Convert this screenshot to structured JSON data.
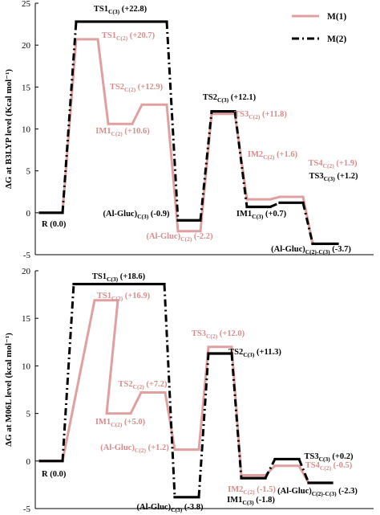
{
  "colors": {
    "m1": "#e0a0a0",
    "m2": "#000000",
    "m1_label": "#d98c8c",
    "m2_label": "#000000"
  },
  "legend": [
    {
      "key": "m1",
      "label": "M(1)"
    },
    {
      "key": "m2",
      "label": "M(2)"
    }
  ],
  "chart_data": [
    {
      "type": "line",
      "ylabel": "ΔG  at  B3LYP level  (Kcal mol⁻¹)",
      "ylim": [
        -5,
        25
      ],
      "yticks": [
        -5,
        0,
        5,
        10,
        15,
        20,
        25
      ],
      "legend_position": "top-right",
      "series": [
        {
          "name": "M(1)",
          "key": "m1",
          "points": [
            {
              "state": "R",
              "value": 0.0
            },
            {
              "state": "TS1 C(2)",
              "value": 20.7
            },
            {
              "state": "IM1 C(2)",
              "value": 10.6
            },
            {
              "state": "TS2 C(2)",
              "value": 12.9
            },
            {
              "state": "(Al-Gluc) C(2)",
              "value": -2.2
            },
            {
              "state": "TS3 C(2)",
              "value": 11.8
            },
            {
              "state": "IM2 C(2)",
              "value": 1.6
            },
            {
              "state": "TS4 C(2)",
              "value": 1.9
            },
            {
              "state": "(Al-Gluc) C(2)-C(3)",
              "value": -3.7
            }
          ]
        },
        {
          "name": "M(2)",
          "key": "m2",
          "points": [
            {
              "state": "R",
              "value": 0.0
            },
            {
              "state": "TS1 C(3)",
              "value": 22.8
            },
            {
              "state": "(Al-Gluc) C(3)",
              "value": -0.9
            },
            {
              "state": "TS2 C(3)",
              "value": 12.1
            },
            {
              "state": "IM1 C(3)",
              "value": 0.7
            },
            {
              "state": "TS3 C(3)",
              "value": 1.2
            },
            {
              "state": "(Al-Gluc) C(2)-C(3)",
              "value": -3.7
            }
          ]
        }
      ],
      "labels": [
        {
          "id": "r",
          "main": "R",
          "sub": "",
          "value": "(0.0)",
          "series": "m2"
        },
        {
          "id": "ts1c3",
          "main": "TS1",
          "sub": "C(3)",
          "value": "(+22.8)",
          "series": "m2"
        },
        {
          "id": "ts1c2",
          "main": "TS1",
          "sub": "C(2)",
          "value": "(+20.7)",
          "series": "m1"
        },
        {
          "id": "ts2c2",
          "main": "TS2",
          "sub": "C(2)",
          "value": "(+12.9)",
          "series": "m1"
        },
        {
          "id": "im1c2",
          "main": "IM1",
          "sub": "C(2)",
          "value": "(+10.6)",
          "series": "m1"
        },
        {
          "id": "ts2c3",
          "main": "TS2",
          "sub": "C(3)",
          "value": "(+12.1)",
          "series": "m2"
        },
        {
          "id": "ts3c2",
          "main": "TS3",
          "sub": "C(2)",
          "value": "(+11.8)",
          "series": "m1"
        },
        {
          "id": "alglucc3",
          "main": "(Al-Gluc)",
          "sub": "C(3)",
          "value": "(-0.9)",
          "series": "m2"
        },
        {
          "id": "alglucc2",
          "main": "(Al-Gluc)",
          "sub": "C(2)",
          "value": "(-2.2)",
          "series": "m1"
        },
        {
          "id": "im2c2",
          "main": "IM2",
          "sub": "C(2)",
          "value": "(+1.6)",
          "series": "m1"
        },
        {
          "id": "ts4c2",
          "main": "TS4",
          "sub": "C(2)",
          "value": "(+1.9)",
          "series": "m1"
        },
        {
          "id": "ts3c3",
          "main": "TS3",
          "sub": "C(3)",
          "value": "(+1.2)",
          "series": "m2"
        },
        {
          "id": "im1c3",
          "main": "IM1",
          "sub": "C(3)",
          "value": "(+0.7)",
          "series": "m2"
        },
        {
          "id": "alglucc23",
          "main": "(Al-Gluc)",
          "sub": "C(2)-C(3)",
          "value": "(-3.7)",
          "series": "m2"
        }
      ]
    },
    {
      "type": "line",
      "ylabel": "ΔG  at  M06L level (kcal mol⁻¹)",
      "ylim": [
        -5,
        20
      ],
      "yticks": [
        -5,
        0,
        5,
        10,
        15,
        20
      ],
      "series": [
        {
          "name": "M(1)",
          "key": "m1",
          "points": [
            {
              "state": "R",
              "value": 0.0
            },
            {
              "state": "TS1 C(2)",
              "value": 16.9
            },
            {
              "state": "IM1 C(2)",
              "value": 5.0
            },
            {
              "state": "TS2 C(2)",
              "value": 7.2
            },
            {
              "state": "(Al-Gluc) C(2)",
              "value": 1.2
            },
            {
              "state": "TS3 C(2)",
              "value": 12.0
            },
            {
              "state": "IM2 C(2)",
              "value": -1.5
            },
            {
              "state": "TS4 C(2)",
              "value": -0.5
            },
            {
              "state": "(Al-Gluc) C(2)-C(3)",
              "value": -2.3
            }
          ]
        },
        {
          "name": "M(2)",
          "key": "m2",
          "points": [
            {
              "state": "R",
              "value": 0.0
            },
            {
              "state": "TS1 C(3)",
              "value": 18.6
            },
            {
              "state": "(Al-Gluc) C(3)",
              "value": -3.8
            },
            {
              "state": "TS2 C(3)",
              "value": 11.3
            },
            {
              "state": "IM1 C(3)",
              "value": -1.8
            },
            {
              "state": "TS3 C(3)",
              "value": 0.2
            },
            {
              "state": "(Al-Gluc) C(2)-C(3)",
              "value": -2.3
            }
          ]
        }
      ],
      "labels": [
        {
          "id": "r",
          "main": "R",
          "sub": "",
          "value": "(0.0)",
          "series": "m2"
        },
        {
          "id": "ts1c3",
          "main": "TS1",
          "sub": "C(3)",
          "value": "(+18.6)",
          "series": "m2"
        },
        {
          "id": "ts1c2",
          "main": "TS1",
          "sub": "C(2)",
          "value": "(+16.9)",
          "series": "m1"
        },
        {
          "id": "ts2c2",
          "main": "TS2",
          "sub": "C(2)",
          "value": "(+7.2)",
          "series": "m1"
        },
        {
          "id": "im1c2",
          "main": "IM1",
          "sub": "C(2)",
          "value": "(+5.0)",
          "series": "m1"
        },
        {
          "id": "alglucc2",
          "main": "(Al-Gluc)",
          "sub": "C(2)",
          "value": "(+1.2)",
          "series": "m1"
        },
        {
          "id": "ts3c2",
          "main": "TS3",
          "sub": "C(2)",
          "value": "(+12.0)",
          "series": "m1"
        },
        {
          "id": "ts2c3",
          "main": "TS2",
          "sub": "C(3)",
          "value": "(+11.3)",
          "series": "m2"
        },
        {
          "id": "alglucc3",
          "main": "(Al-Gluc)",
          "sub": "C(3)",
          "value": "(-3.8)",
          "series": "m2"
        },
        {
          "id": "im2c2",
          "main": "IM2",
          "sub": "C(2)",
          "value": "(-1.5)",
          "series": "m1"
        },
        {
          "id": "im1c3",
          "main": "IM1",
          "sub": "C(3)",
          "value": "(-1.8)",
          "series": "m2"
        },
        {
          "id": "ts3c3",
          "main": "TS3",
          "sub": "C(3)",
          "value": "(+0.2)",
          "series": "m2"
        },
        {
          "id": "ts4c2",
          "main": "TS4",
          "sub": "C(2)",
          "value": "(-0.5)",
          "series": "m1"
        },
        {
          "id": "alglucc23",
          "main": "(Al-Gluc)",
          "sub": "C(2)-C(3)",
          "value": "(-2.3)",
          "series": "m2"
        }
      ]
    }
  ]
}
